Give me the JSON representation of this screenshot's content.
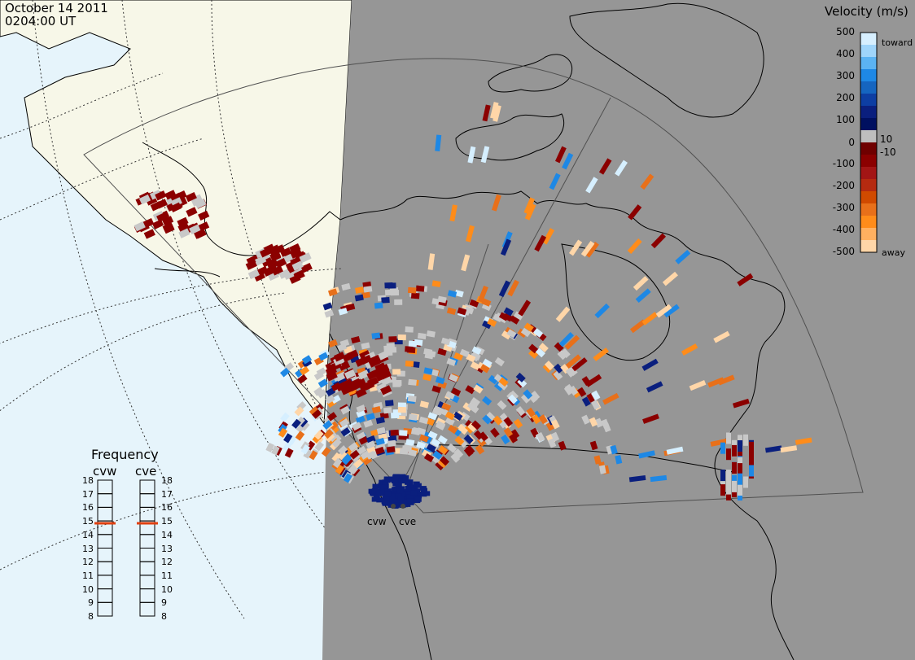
{
  "header": {
    "date": "October 14 2011",
    "time": "0204:00 UT"
  },
  "colorbar": {
    "title": "Velocity (m/s)",
    "toward_label": "toward",
    "away_label": "away",
    "ticks": [
      "500",
      "400",
      "300",
      "200",
      "100",
      "10",
      "0",
      "-10",
      "-100",
      "-200",
      "-300",
      "-400",
      "-500"
    ],
    "colors_top_to_bottom": [
      "#d6efff",
      "#9fd5fb",
      "#5bb3f3",
      "#1e88e5",
      "#1565c0",
      "#0d3ea3",
      "#0a1f7e",
      "#001060",
      "#bebebe",
      "#6f0000",
      "#8b0000",
      "#a31515",
      "#b52a10",
      "#d04a00",
      "#e8701a",
      "#ff8c1a",
      "#ffb060",
      "#ffd6a8"
    ]
  },
  "frequency": {
    "title": "Frequency",
    "radar_left": "cvw",
    "radar_right": "cve",
    "scale": [
      "18",
      "17",
      "16",
      "15",
      "14",
      "13",
      "12",
      "11",
      "10",
      "9",
      "8"
    ],
    "left_value_mhz": 15,
    "right_value_mhz": 15,
    "marker_color": "#e04010"
  },
  "radars": {
    "left_label": "cvw",
    "right_label": "cve"
  },
  "map": {
    "ocean_color": "#e6f4fb",
    "land_day_color": "#f7f7e8",
    "night_color": "#969696",
    "coast_color": "#000000",
    "fov_color": "#505050",
    "ground_scatter_color": "#c8c8c8"
  }
}
